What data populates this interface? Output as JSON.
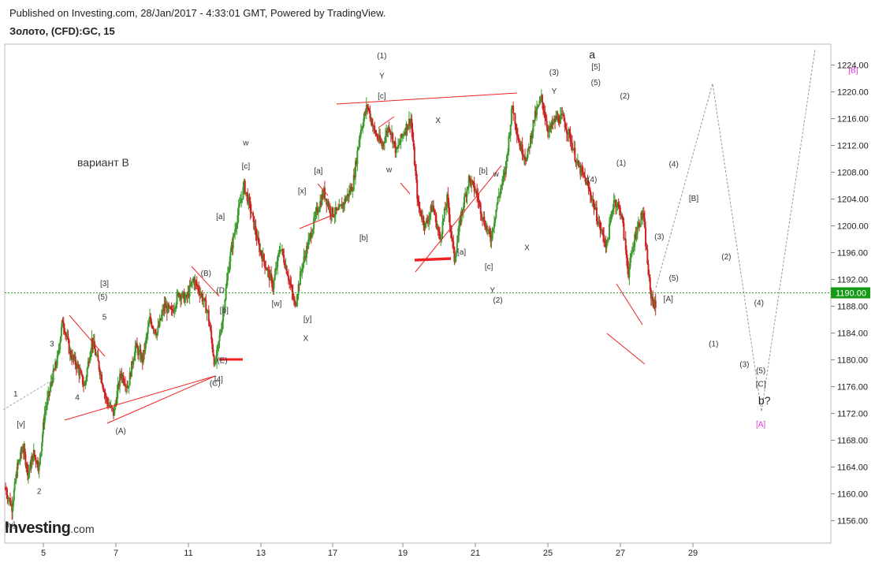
{
  "header": {
    "published": "Published on Investing.com, 28/Jan/2017 - 4:33:01 GMT, Powered by TradingView.",
    "symbol": "Золото, (CFD):GC, 15"
  },
  "logo": {
    "main": "Investing",
    "suffix": ".com"
  },
  "colors": {
    "up_candle": "#3a9a2a",
    "down_candle": "#cc2222",
    "trendline": "#ee2222",
    "price_line": "#22aa22",
    "price_badge": "#149a14",
    "projection": "#999999",
    "wave_label": "#333333",
    "projection_label": "#dd33dd"
  },
  "chart_data": {
    "type": "candlestick",
    "title": "Золото, (CFD):GC, 15",
    "y_axis": {
      "min": 1153,
      "max": 1228,
      "ticks": [
        1156,
        1160,
        1164,
        1168,
        1172,
        1176,
        1180,
        1184,
        1188,
        1192,
        1196,
        1200,
        1204,
        1208,
        1212,
        1216,
        1220,
        1224
      ],
      "side": "right"
    },
    "x_axis": {
      "ticks": [
        "5",
        "7",
        "11",
        "13",
        "17",
        "19",
        "21",
        "25",
        "27",
        "29"
      ]
    },
    "last_price": "1190.00",
    "note": "вариант B",
    "price_path": [
      [
        3.0,
        1161
      ],
      [
        3.4,
        1158
      ],
      [
        3.7,
        1164
      ],
      [
        4.0,
        1167
      ],
      [
        4.3,
        1163
      ],
      [
        4.6,
        1166
      ],
      [
        4.9,
        1164
      ],
      [
        5.2,
        1172
      ],
      [
        5.6,
        1177
      ],
      [
        5.9,
        1180
      ],
      [
        6.2,
        1186
      ],
      [
        6.6,
        1181
      ],
      [
        7.0,
        1179
      ],
      [
        7.4,
        1176
      ],
      [
        7.8,
        1183
      ],
      [
        8.2,
        1179
      ],
      [
        8.6,
        1174
      ],
      [
        9.0,
        1172
      ],
      [
        9.4,
        1178
      ],
      [
        9.8,
        1176
      ],
      [
        10.2,
        1182
      ],
      [
        10.6,
        1180
      ],
      [
        11.0,
        1186
      ],
      [
        11.4,
        1184
      ],
      [
        11.8,
        1188
      ],
      [
        12.2,
        1187
      ],
      [
        12.6,
        1190
      ],
      [
        13.0,
        1189
      ],
      [
        13.4,
        1192
      ],
      [
        13.8,
        1190
      ],
      [
        14.2,
        1187
      ],
      [
        14.6,
        1179
      ],
      [
        15.0,
        1186
      ],
      [
        15.4,
        1195
      ],
      [
        15.8,
        1201
      ],
      [
        16.2,
        1206
      ],
      [
        16.6,
        1202
      ],
      [
        17.0,
        1197
      ],
      [
        17.4,
        1194
      ],
      [
        17.8,
        1191
      ],
      [
        18.2,
        1197
      ],
      [
        18.6,
        1193
      ],
      [
        19.0,
        1188
      ],
      [
        19.4,
        1194
      ],
      [
        19.8,
        1198
      ],
      [
        20.2,
        1202
      ],
      [
        20.6,
        1205
      ],
      [
        21.0,
        1202
      ],
      [
        21.4,
        1202
      ],
      [
        21.8,
        1204
      ],
      [
        22.2,
        1206
      ],
      [
        22.6,
        1214
      ],
      [
        23.0,
        1218
      ],
      [
        23.4,
        1214
      ],
      [
        23.8,
        1212
      ],
      [
        24.2,
        1215
      ],
      [
        24.6,
        1211
      ],
      [
        25.0,
        1214
      ],
      [
        25.4,
        1216
      ],
      [
        25.8,
        1203
      ],
      [
        26.2,
        1200
      ],
      [
        26.6,
        1203
      ],
      [
        27.0,
        1198
      ],
      [
        27.4,
        1204
      ],
      [
        27.8,
        1195
      ],
      [
        28.2,
        1202
      ],
      [
        28.6,
        1207
      ],
      [
        29.0,
        1205
      ],
      [
        29.4,
        1201
      ],
      [
        29.8,
        1198
      ],
      [
        30.2,
        1204
      ],
      [
        30.6,
        1208
      ],
      [
        31.0,
        1218
      ],
      [
        31.4,
        1212
      ],
      [
        31.8,
        1210
      ],
      [
        32.2,
        1216
      ],
      [
        32.6,
        1219
      ],
      [
        33.0,
        1214
      ],
      [
        33.4,
        1216
      ],
      [
        33.8,
        1216
      ],
      [
        34.2,
        1213
      ],
      [
        34.6,
        1209
      ],
      [
        35.0,
        1207
      ],
      [
        35.4,
        1204
      ],
      [
        35.8,
        1200
      ],
      [
        36.2,
        1197
      ],
      [
        36.6,
        1204
      ],
      [
        37.0,
        1202
      ],
      [
        37.4,
        1193
      ],
      [
        37.8,
        1199
      ],
      [
        38.2,
        1202
      ],
      [
        38.6,
        1190
      ],
      [
        39.0,
        1187
      ],
      [
        39.4,
        1186
      ],
      [
        39.8,
        1183
      ],
      [
        40.2,
        1184
      ],
      [
        40.6,
        1181
      ],
      [
        41.0,
        1182
      ],
      [
        41.4,
        1179
      ],
      [
        41.8,
        1183
      ],
      [
        42.2,
        1188
      ],
      [
        42.6,
        1190
      ]
    ],
    "wave_labels": [
      {
        "text": "[iv]",
        "x": 3.3,
        "y": 1155.5
      },
      {
        "text": "1",
        "x": 3.6,
        "y": 1175
      },
      {
        "text": "[v]",
        "x": 3.9,
        "y": 1170.5
      },
      {
        "text": "2",
        "x": 4.9,
        "y": 1160.5
      },
      {
        "text": "3",
        "x": 5.6,
        "y": 1182.5
      },
      {
        "text": "4",
        "x": 7.0,
        "y": 1174.5
      },
      {
        "text": "(A)",
        "x": 9.4,
        "y": 1169.5
      },
      {
        "text": "[3]",
        "x": 8.5,
        "y": 1191.5
      },
      {
        "text": "(5)",
        "x": 8.4,
        "y": 1189.5
      },
      {
        "text": "5",
        "x": 8.5,
        "y": 1186.5
      },
      {
        "text": "(B)",
        "x": 14.1,
        "y": 1193
      },
      {
        "text": "(D",
        "x": 14.9,
        "y": 1190.5
      },
      {
        "text": "[b]",
        "x": 15.1,
        "y": 1187.5
      },
      {
        "text": "(E)",
        "x": 15.0,
        "y": 1180
      },
      {
        "text": "[4]",
        "x": 14.8,
        "y": 1177.2
      },
      {
        "text": "(C)",
        "x": 14.6,
        "y": 1176.6
      },
      {
        "text": "[a]",
        "x": 14.9,
        "y": 1201.5
      },
      {
        "text": "w",
        "x": 16.3,
        "y": 1212.5
      },
      {
        "text": "[c]",
        "x": 16.3,
        "y": 1209
      },
      {
        "text": "[w]",
        "x": 18.0,
        "y": 1188.5
      },
      {
        "text": "[y]",
        "x": 19.7,
        "y": 1186.2
      },
      {
        "text": "X",
        "x": 19.6,
        "y": 1183.3
      },
      {
        "text": "[x]",
        "x": 19.4,
        "y": 1205.3
      },
      {
        "text": "[a]",
        "x": 20.3,
        "y": 1208.3
      },
      {
        "text": "[b]",
        "x": 22.8,
        "y": 1198.3
      },
      {
        "text": "(1)",
        "x": 23.8,
        "y": 1225.5
      },
      {
        "text": "Y",
        "x": 23.8,
        "y": 1222.5
      },
      {
        "text": "[c]",
        "x": 23.8,
        "y": 1219.5
      },
      {
        "text": "w",
        "x": 24.2,
        "y": 1208.5
      },
      {
        "text": "X",
        "x": 26.9,
        "y": 1215.8
      },
      {
        "text": "[a]",
        "x": 28.2,
        "y": 1196.2
      },
      {
        "text": "[b]",
        "x": 29.4,
        "y": 1208.3
      },
      {
        "text": "w",
        "x": 30.1,
        "y": 1207.8
      },
      {
        "text": "[c]",
        "x": 29.7,
        "y": 1194
      },
      {
        "text": "Y",
        "x": 29.9,
        "y": 1190.5
      },
      {
        "text": "(2)",
        "x": 30.2,
        "y": 1189
      },
      {
        "text": "X",
        "x": 31.8,
        "y": 1196.8
      },
      {
        "text": "(3)",
        "x": 33.3,
        "y": 1223
      },
      {
        "text": "Y",
        "x": 33.3,
        "y": 1220.2
      },
      {
        "text": "(4)",
        "x": 35.4,
        "y": 1207
      },
      {
        "text": "[5]",
        "x": 35.6,
        "y": 1223.8
      },
      {
        "text": "(5)",
        "x": 35.6,
        "y": 1221.5
      },
      {
        "text": "(2)",
        "x": 37.2,
        "y": 1219.5
      },
      {
        "text": "(1)",
        "x": 37.0,
        "y": 1209.5
      },
      {
        "text": "(4)",
        "x": 39.9,
        "y": 1209.3
      },
      {
        "text": "(3)",
        "x": 39.1,
        "y": 1198.5
      },
      {
        "text": "[B]",
        "x": 41.0,
        "y": 1204.2
      },
      {
        "text": "(5)",
        "x": 39.9,
        "y": 1192.3
      },
      {
        "text": "[A]",
        "x": 39.6,
        "y": 1189.2
      },
      {
        "text": "(2)",
        "x": 42.8,
        "y": 1195.5
      },
      {
        "text": "(1)",
        "x": 42.1,
        "y": 1182.5
      },
      {
        "text": "(4)",
        "x": 44.6,
        "y": 1188.6
      },
      {
        "text": "(3)",
        "x": 43.8,
        "y": 1179.4
      },
      {
        "text": "(5)",
        "x": 44.7,
        "y": 1178.5
      },
      {
        "text": "[C]",
        "x": 44.7,
        "y": 1176.5
      }
    ],
    "big_labels": [
      {
        "text": "a",
        "x": 35.4,
        "y": 1225.5
      },
      {
        "text": "b?",
        "x": 44.9,
        "y": 1173.8
      }
    ],
    "projection_labels": [
      {
        "text": "[A]",
        "x": 44.7,
        "y": 1170.5
      },
      {
        "text": "[B]",
        "x": 49.8,
        "y": 1223.3
      },
      {
        "text": "[C]",
        "x": 53.0,
        "y": 1168.8
      },
      {
        "text": "b?",
        "x": 53.4,
        "y": 1165.5
      }
    ]
  }
}
